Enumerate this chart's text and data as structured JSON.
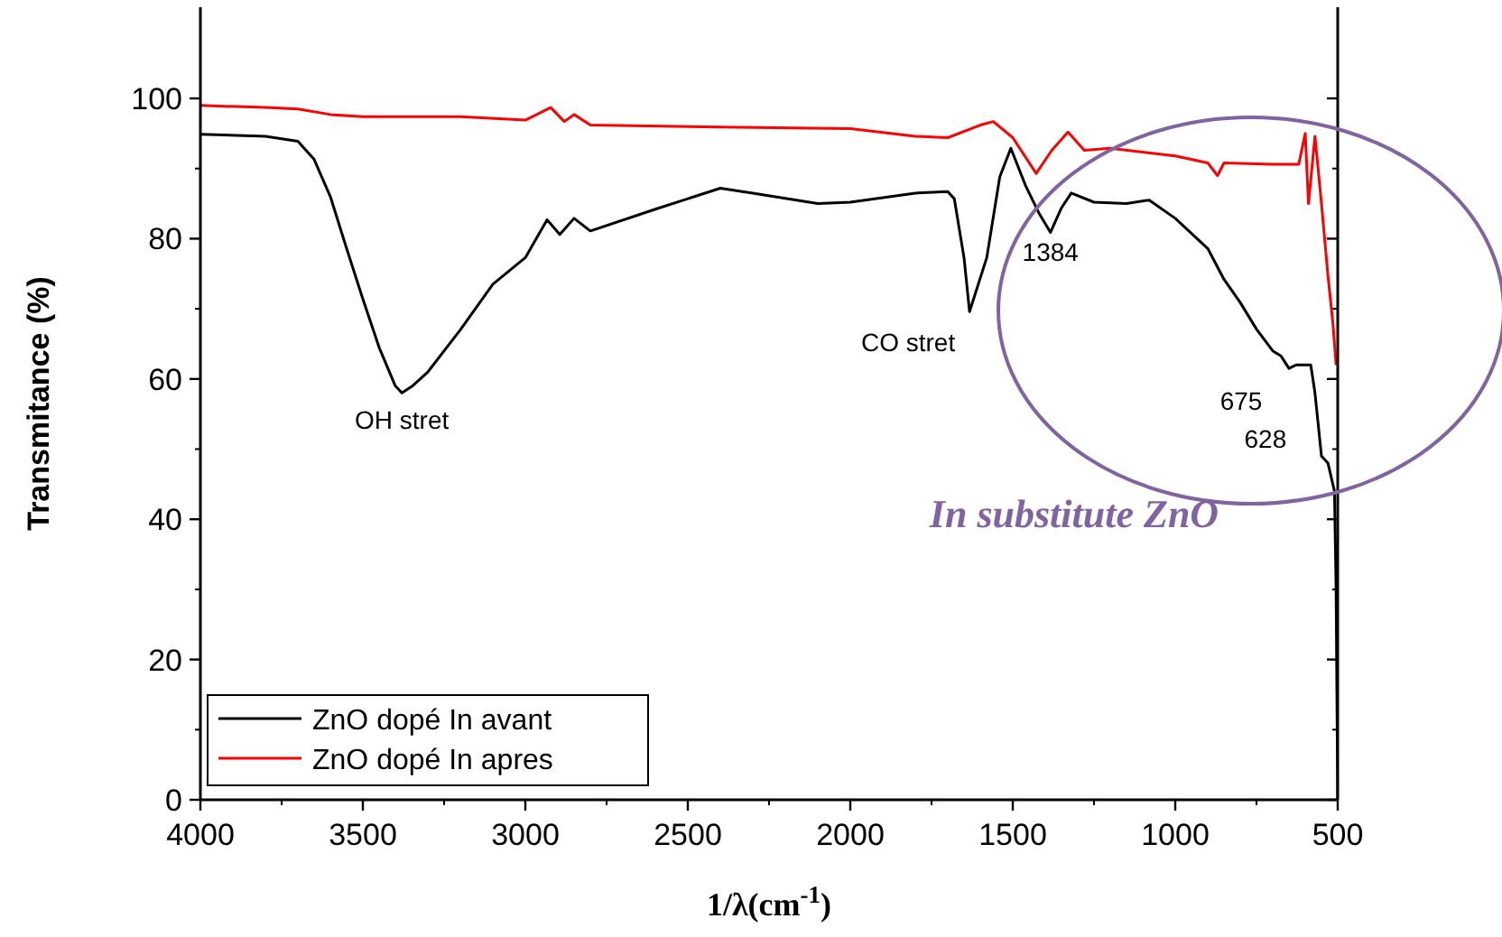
{
  "chart_data": {
    "type": "line",
    "xlabel": "1/λ(cm$^{-1}$)",
    "ylabel": "Transmitance (%)",
    "xlim": [
      4000,
      500
    ],
    "xticks": [
      4000,
      3500,
      3000,
      2500,
      2000,
      1500,
      1000,
      500
    ],
    "ylim": [
      0,
      113
    ],
    "yticks": [
      0,
      20,
      40,
      60,
      80,
      100
    ],
    "grid": false,
    "legend": "bottom left",
    "marker": "none",
    "line_style": "solid",
    "series": [
      {
        "name": "ZnO dopé In avant",
        "color": "#000000",
        "x": [
          4000,
          3800,
          3700,
          3650,
          3600,
          3550,
          3500,
          3450,
          3400,
          3380,
          3350,
          3300,
          3200,
          3100,
          3000,
          2933,
          2894,
          2850,
          2800,
          2600,
          2400,
          2300,
          2100,
          2000,
          1800,
          1700,
          1680,
          1650,
          1633,
          1580,
          1540,
          1506,
          1460,
          1420,
          1384,
          1350,
          1320,
          1250,
          1150,
          1080,
          1000,
          900,
          850,
          800,
          750,
          700,
          675,
          650,
          628,
          583,
          570,
          550,
          530,
          510,
          505,
          500
        ],
        "values": [
          94.9,
          94.6,
          93.9,
          91.3,
          86,
          78.6,
          71.4,
          64.5,
          59,
          58,
          58.9,
          61,
          67,
          73.5,
          77.3,
          82.7,
          80.6,
          82.9,
          81.1,
          84.2,
          87.2,
          86.5,
          85,
          85.2,
          86.5,
          86.7,
          85.7,
          77.3,
          69.6,
          77.3,
          88.8,
          92.9,
          87.5,
          83.7,
          80.9,
          84.4,
          86.5,
          85.2,
          85,
          85.5,
          82.9,
          78.6,
          74.2,
          70.9,
          67.1,
          64,
          63.3,
          61.5,
          62,
          62,
          58,
          49,
          48,
          44,
          30,
          0
        ]
      },
      {
        "name": "ZnO dopé In apres",
        "color": "#ff0000",
        "x": [
          4000,
          3800,
          3700,
          3600,
          3500,
          3200,
          3000,
          2922,
          2880,
          2850,
          2800,
          2400,
          2000,
          1800,
          1700,
          1600,
          1560,
          1500,
          1428,
          1380,
          1330,
          1280,
          1200,
          1000,
          900,
          870,
          850,
          700,
          620,
          600,
          590,
          570,
          550,
          530,
          515,
          505
        ],
        "values": [
          99,
          98.7,
          98.5,
          97.7,
          97.4,
          97.4,
          96.9,
          98.7,
          96.7,
          97.7,
          96.2,
          95.9,
          95.7,
          94.6,
          94.4,
          96.2,
          96.7,
          94.4,
          89.3,
          92.6,
          95.2,
          92.6,
          92.9,
          91.8,
          90.8,
          89,
          90.8,
          90.6,
          90.6,
          95,
          85,
          94.6,
          85,
          74.7,
          68,
          62
        ]
      }
    ],
    "annotations": [
      {
        "text": "OH stret",
        "x": 3380,
        "y": 58
      },
      {
        "text": "CO stret",
        "x": 1633,
        "y": 69.6
      },
      {
        "text": "1384",
        "x": 1384,
        "y": 80.9
      },
      {
        "text": "675",
        "x": 675,
        "y": 63.3
      },
      {
        "text": "628",
        "x": 628,
        "y": 62
      },
      "In substitute ZnO"
    ]
  }
}
